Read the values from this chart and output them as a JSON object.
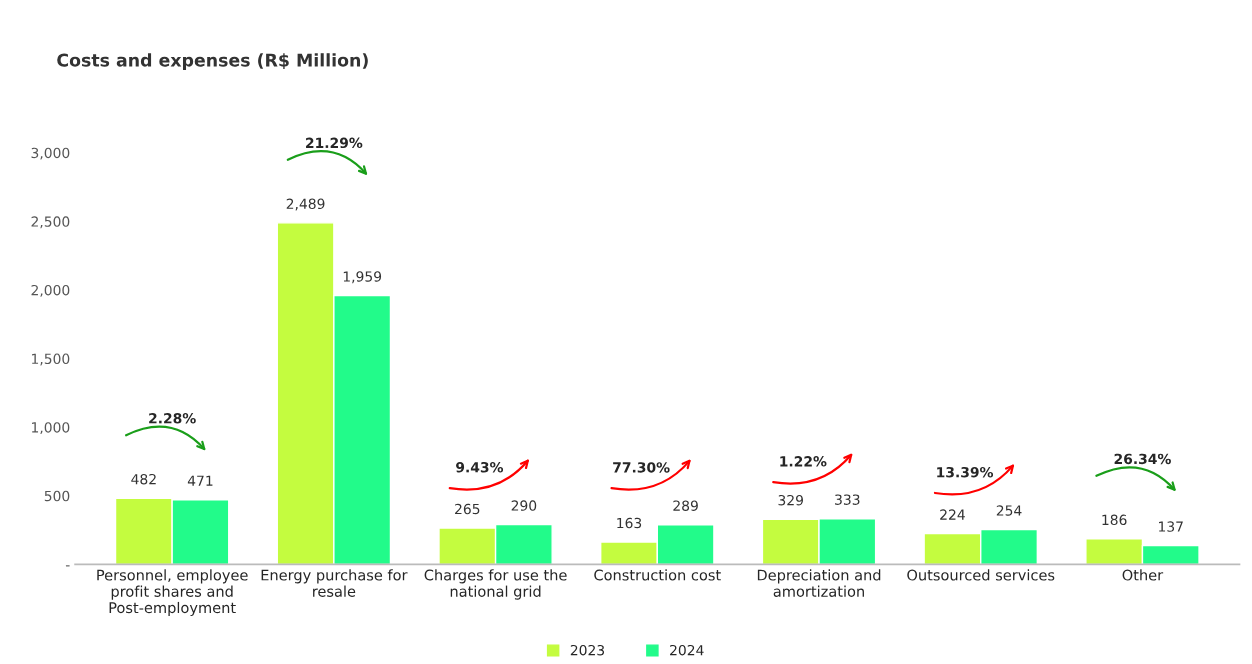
{
  "chart_data": {
    "type": "bar",
    "title": "Costs and expenses (R$ Million)",
    "categories": [
      "Personnel, employee\nprofit shares and\nPost-employment",
      "Energy purchase for\nresale",
      "Charges for use the\nnational grid",
      "Construction cost",
      "Depreciation and\namortization",
      "Outsourced services",
      "Other"
    ],
    "series": [
      {
        "name": "2023",
        "color": "#c4fc3f",
        "values": [
          482,
          2489,
          265,
          163,
          329,
          224,
          186
        ],
        "value_labels": [
          "482",
          "2,489",
          "265",
          "163",
          "329",
          "224",
          "186"
        ]
      },
      {
        "name": "2024",
        "color": "#22fb8a",
        "values": [
          471,
          1959,
          290,
          289,
          333,
          254,
          137
        ],
        "value_labels": [
          "471",
          "1,959",
          "290",
          "289",
          "333",
          "254",
          "137"
        ]
      }
    ],
    "annotations": [
      "2.28%",
      "21.29%",
      "9.43%",
      "77.30%",
      "1.22%",
      "13.39%",
      "26.34%"
    ],
    "ylim": [
      0,
      3000
    ],
    "yticks": [
      {
        "value": 0,
        "label": "-"
      },
      500,
      {
        "value": 1000,
        "label": "1,000"
      },
      {
        "value": 1500,
        "label": "1,500"
      },
      {
        "value": 2000,
        "label": "2,000"
      },
      {
        "value": 2500,
        "label": "2,500"
      },
      {
        "value": 3000,
        "label": "3,000"
      }
    ],
    "grid": false,
    "legend": "bottom"
  }
}
